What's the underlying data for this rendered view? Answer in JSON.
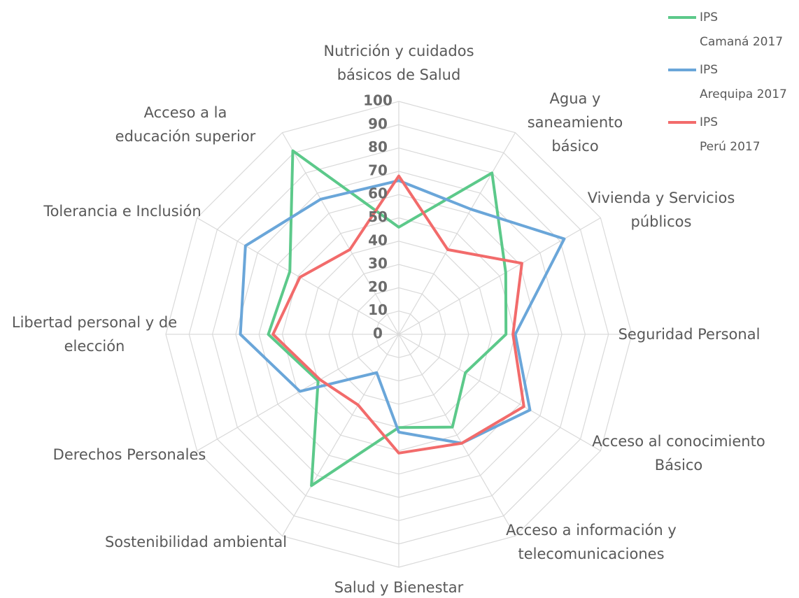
{
  "chart_data": {
    "type": "radar",
    "categories": [
      "Nutrición y cuidados básicos de Salud",
      "Agua y saneamiento básico",
      "Vivienda y Servicios públicos",
      "Seguridad Personal",
      "Acceso al conocimiento Básico",
      "Acceso a información y telecomunicaciones",
      "Salud y Bienestar",
      "Sostenibilidad ambiental",
      "Derechos Personales",
      "Libertad personal y de elección",
      "Tolerancia e Inclusión",
      "Acceso a la educación superior"
    ],
    "series": [
      {
        "name": "IPS Camaná 2017",
        "color": "#5cc98a",
        "values": [
          46,
          80,
          53,
          46,
          33,
          46,
          40,
          75,
          40,
          56,
          54,
          91
        ]
      },
      {
        "name": "IPS Arequipa 2017",
        "color": "#6aa6d9",
        "values": [
          66,
          62,
          82,
          50,
          65,
          54,
          42,
          19,
          49,
          68,
          76,
          67
        ]
      },
      {
        "name": "IPS Perú 2017",
        "color": "#f26b6b",
        "values": [
          68,
          42,
          61,
          49,
          62,
          54,
          51,
          35,
          39,
          54,
          49,
          42
        ]
      }
    ],
    "ylim": [
      0,
      100
    ],
    "yticks": [
      0,
      10,
      20,
      30,
      40,
      50,
      60,
      70,
      80,
      90,
      100
    ],
    "grid": true,
    "legend": "top-right"
  }
}
